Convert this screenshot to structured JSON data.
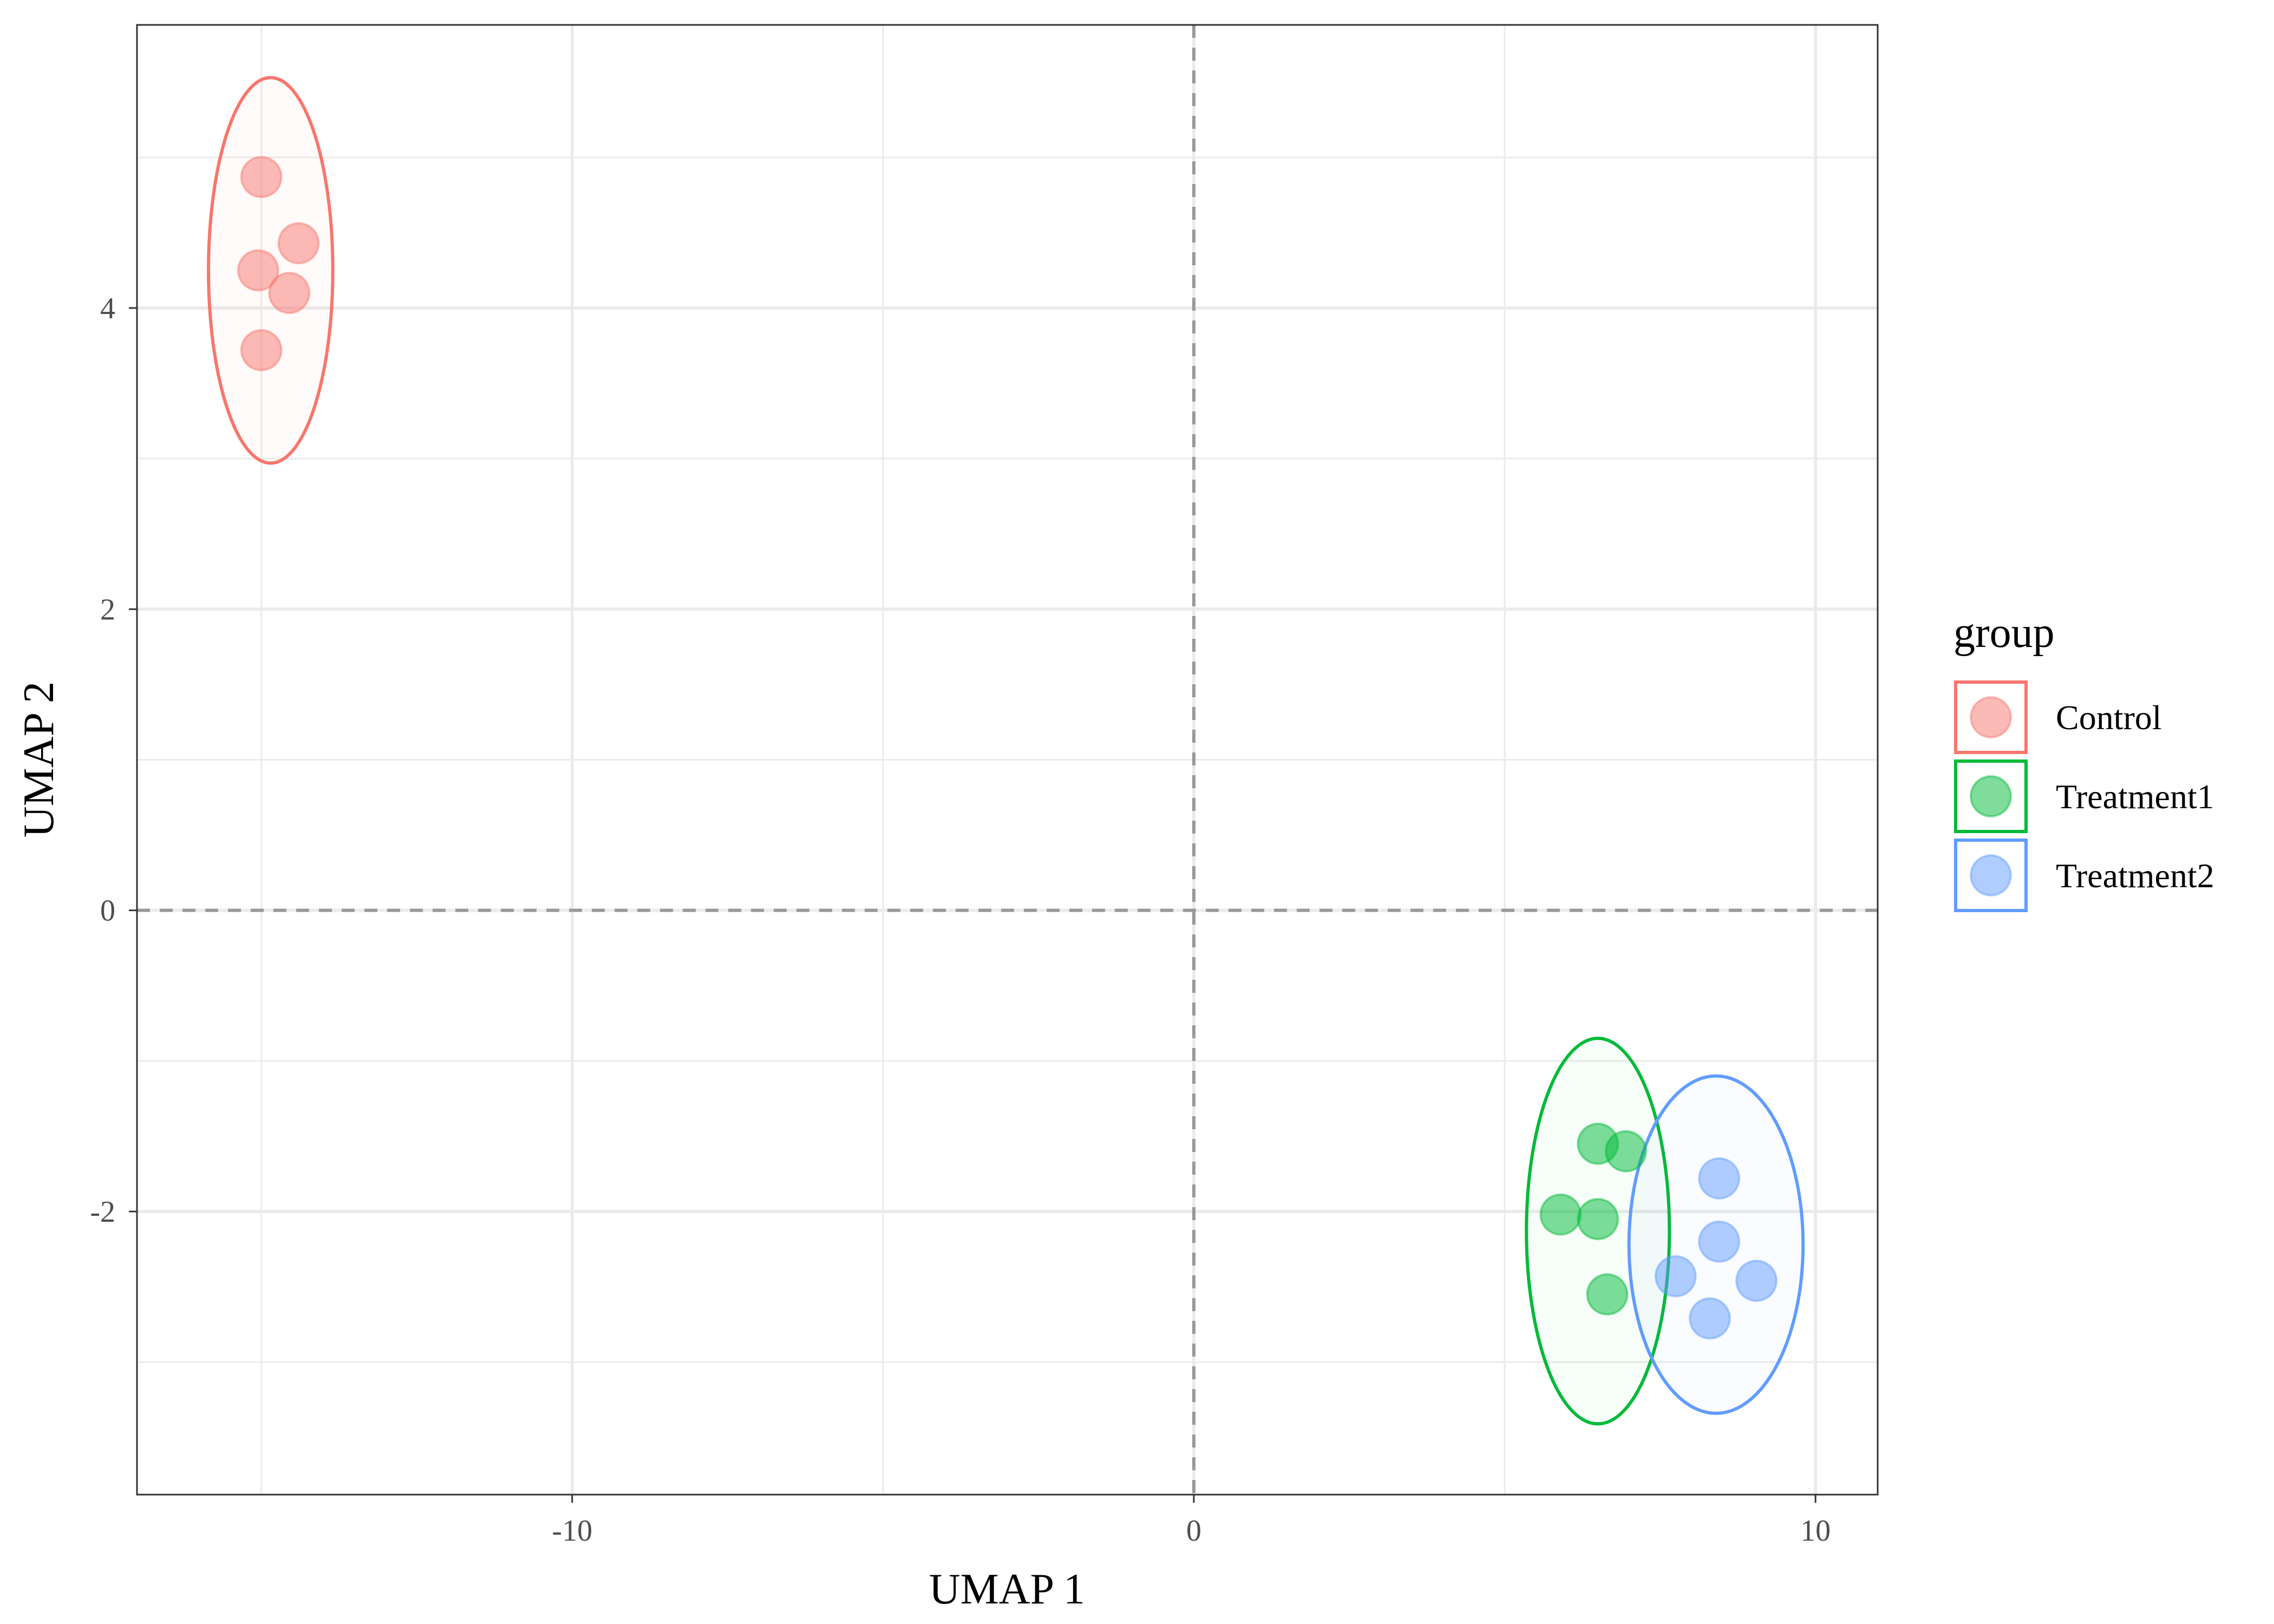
{
  "chart_data": {
    "type": "scatter",
    "xlabel": "UMAP 1",
    "ylabel": "UMAP 2",
    "xlim": [
      -17,
      11
    ],
    "ylim": [
      -3.88,
      5.88
    ],
    "x_ticks": [
      -10,
      0,
      10
    ],
    "x_tick_labels": [
      "-10",
      "0",
      "10"
    ],
    "y_ticks": [
      -2,
      0,
      2,
      4
    ],
    "y_tick_labels": [
      "-2",
      "0",
      "2",
      "4"
    ],
    "x_minor_grid": [
      -15,
      -5,
      5
    ],
    "y_minor_grid": [
      -3,
      -1,
      1,
      3,
      5
    ],
    "grid": true,
    "reference_lines": {
      "x": 0,
      "y": 0,
      "style": "dashed"
    },
    "legend": {
      "title": "group",
      "position": "right"
    },
    "series": [
      {
        "name": "Control",
        "color": "#F8766D",
        "points": [
          {
            "x": -15.0,
            "y": 4.87
          },
          {
            "x": -14.4,
            "y": 4.43
          },
          {
            "x": -15.05,
            "y": 4.25
          },
          {
            "x": -14.55,
            "y": 4.1
          },
          {
            "x": -15.0,
            "y": 3.72
          }
        ],
        "ellipse": {
          "cx": -14.85,
          "cy": 4.25,
          "rx": 1.0,
          "ry": 1.28
        }
      },
      {
        "name": "Treatment1",
        "color": "#00BA38",
        "points": [
          {
            "x": 6.5,
            "y": -1.55
          },
          {
            "x": 6.95,
            "y": -1.6
          },
          {
            "x": 5.9,
            "y": -2.02
          },
          {
            "x": 6.5,
            "y": -2.05
          },
          {
            "x": 6.65,
            "y": -2.55
          }
        ],
        "ellipse": {
          "cx": 6.5,
          "cy": -2.13,
          "rx": 1.15,
          "ry": 1.28
        }
      },
      {
        "name": "Treatment2",
        "color": "#619CFF",
        "points": [
          {
            "x": 8.45,
            "y": -1.78
          },
          {
            "x": 8.45,
            "y": -2.2
          },
          {
            "x": 9.05,
            "y": -2.46
          },
          {
            "x": 7.75,
            "y": -2.43
          },
          {
            "x": 8.3,
            "y": -2.71
          }
        ],
        "ellipse": {
          "cx": 8.4,
          "cy": -2.22,
          "rx": 1.4,
          "ry": 1.12
        }
      }
    ]
  }
}
